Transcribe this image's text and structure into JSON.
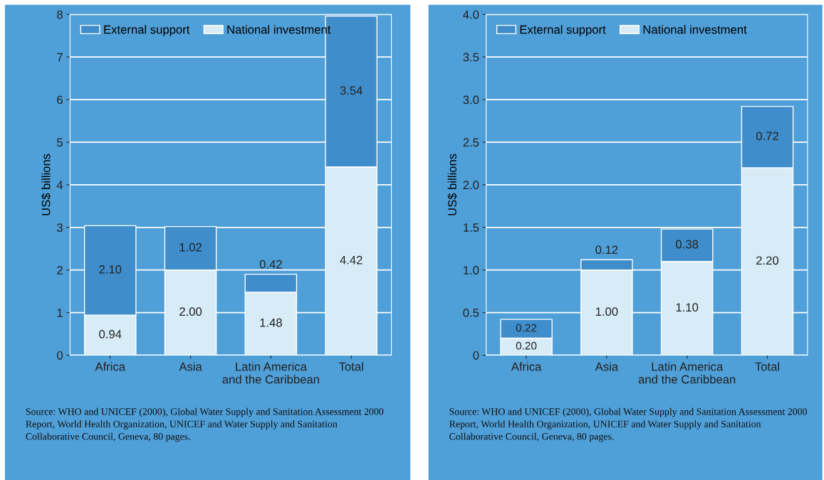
{
  "chart_data": [
    {
      "type": "bar",
      "stacked": true,
      "ylabel": "US$ billions",
      "categories": [
        "Africa",
        "Asia",
        "Latin America\nand the Caribbean",
        "Total"
      ],
      "series": [
        {
          "name": "National investment",
          "color": "#d8ecf8",
          "values": [
            0.94,
            2.0,
            1.48,
            4.42
          ],
          "value_labels": [
            "0.94",
            "2.00",
            "1.48",
            "4.42"
          ]
        },
        {
          "name": "External support",
          "color": "#3f8dcb",
          "values": [
            2.1,
            1.02,
            0.42,
            3.54
          ],
          "value_labels": [
            "2.10",
            "1.02",
            "0.42",
            "3.54"
          ]
        }
      ],
      "ylim": [
        0,
        8
      ],
      "yticks": [
        0,
        1,
        2,
        3,
        4,
        5,
        6,
        7,
        8
      ],
      "grid": "y",
      "legend": "top left",
      "annotations": [
        "Source: WHO and UNICEF (2000), Global Water Supply and Sanitation Assessment 2000\nReport, World Health Organization, UNICEF and Water Supply and Sanitation\nCollaborative Council, Geneva, 80 pages."
      ]
    },
    {
      "type": "bar",
      "stacked": true,
      "ylabel": "US$ billions",
      "categories": [
        "Africa",
        "Asia",
        "Latin America\nand the Caribbean",
        "Total"
      ],
      "series": [
        {
          "name": "National investment",
          "color": "#d8ecf8",
          "values": [
            0.2,
            1.0,
            1.1,
            2.2
          ],
          "value_labels": [
            "0.20",
            "1.00",
            "1.10",
            "2.20"
          ]
        },
        {
          "name": "External support",
          "color": "#3f8dcb",
          "values": [
            0.22,
            0.12,
            0.38,
            0.72
          ],
          "value_labels": [
            "0.22",
            "0.12",
            "0.38",
            "0.72"
          ]
        }
      ],
      "ylim": [
        0,
        4.0
      ],
      "yticks": [
        0,
        0.5,
        {
          "value": 1,
          "label": "1.0"
        },
        1.5,
        {
          "value": 2,
          "label": "2.0"
        },
        2.5,
        {
          "value": 3,
          "label": "3.0"
        },
        3.5,
        {
          "value": 4,
          "label": "4.0"
        }
      ],
      "grid": "y",
      "legend": "top left",
      "annotations": [
        "Source: WHO and UNICEF (2000), Global Water Supply and Sanitation Assessment 2000\nReport, World Health Organization, UNICEF and Water Supply and Sanitation\nCollaborative Council, Geneva, 80 pages."
      ]
    }
  ]
}
